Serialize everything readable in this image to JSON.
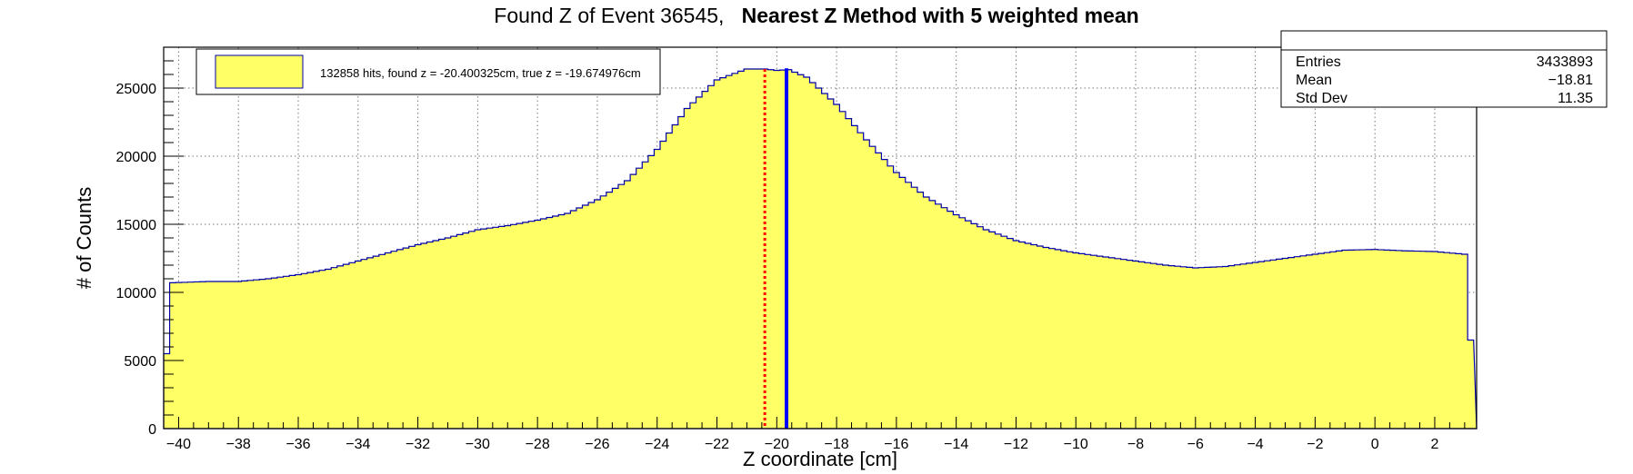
{
  "title": {
    "part1": "Found Z of Event 36545,",
    "part2": "Nearest Z Method with 5 weighted mean"
  },
  "legend": {
    "entry": "132858 hits, found z = -20.400325cm, true z = -19.674976cm",
    "fill_color": "#ffff66"
  },
  "stats": {
    "rows": [
      {
        "label": "Entries",
        "value": "3433893"
      },
      {
        "label": "Mean",
        "value": "−18.81"
      },
      {
        "label": "Std Dev",
        "value": "11.35"
      }
    ]
  },
  "colors": {
    "fill": "#ffff66",
    "outline": "#0000aa",
    "found_line": "#ff0000",
    "true_line": "#0000ff"
  },
  "chart_data": {
    "type": "bar",
    "xlabel": "Z coordinate [cm]",
    "ylabel": "# of Counts",
    "xlim": [
      -40.5,
      3.4
    ],
    "ylim": [
      0,
      28000
    ],
    "grid": true,
    "legend_position": "top-left",
    "x_ticks": [
      -40,
      -38,
      -36,
      -34,
      -32,
      -30,
      -28,
      -26,
      -24,
      -22,
      -20,
      -18,
      -16,
      -14,
      -12,
      -10,
      -8,
      -6,
      -4,
      -2,
      0,
      2
    ],
    "y_ticks": [
      0,
      5000,
      10000,
      15000,
      20000,
      25000
    ],
    "bin_width": 0.2,
    "histogram_profile": [
      [
        -40.5,
        5500
      ],
      [
        -40.3,
        10700
      ],
      [
        -39.0,
        10800
      ],
      [
        -38.0,
        10800
      ],
      [
        -37.0,
        11000
      ],
      [
        -36.0,
        11300
      ],
      [
        -35.0,
        11700
      ],
      [
        -34.0,
        12300
      ],
      [
        -33.0,
        12900
      ],
      [
        -32.0,
        13500
      ],
      [
        -31.0,
        14000
      ],
      [
        -30.0,
        14600
      ],
      [
        -29.0,
        14900
      ],
      [
        -28.0,
        15300
      ],
      [
        -27.0,
        15800
      ],
      [
        -26.0,
        16800
      ],
      [
        -25.0,
        18200
      ],
      [
        -24.0,
        20500
      ],
      [
        -23.0,
        23500
      ],
      [
        -22.0,
        25600
      ],
      [
        -21.0,
        26400
      ],
      [
        -20.4,
        26400
      ],
      [
        -20.0,
        26300
      ],
      [
        -19.6,
        26350
      ],
      [
        -19.0,
        25800
      ],
      [
        -18.0,
        23800
      ],
      [
        -17.0,
        21200
      ],
      [
        -16.0,
        18800
      ],
      [
        -15.0,
        17000
      ],
      [
        -14.0,
        15700
      ],
      [
        -13.0,
        14600
      ],
      [
        -12.0,
        13800
      ],
      [
        -11.0,
        13300
      ],
      [
        -10.0,
        12900
      ],
      [
        -9.0,
        12600
      ],
      [
        -8.0,
        12300
      ],
      [
        -7.0,
        12000
      ],
      [
        -6.0,
        11800
      ],
      [
        -5.0,
        11900
      ],
      [
        -4.0,
        12200
      ],
      [
        -3.0,
        12500
      ],
      [
        -2.0,
        12800
      ],
      [
        -1.0,
        13100
      ],
      [
        0.0,
        13150
      ],
      [
        1.0,
        13050
      ],
      [
        2.0,
        13000
      ],
      [
        3.0,
        12800
      ],
      [
        3.2,
        6500
      ],
      [
        3.4,
        6500
      ]
    ],
    "found_z": -20.400325,
    "true_z": -19.674976
  }
}
